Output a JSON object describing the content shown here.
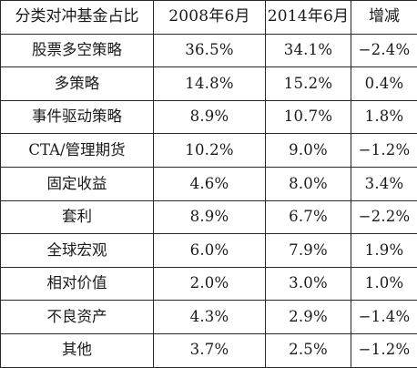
{
  "table": {
    "headers": [
      "分类对冲基金占比",
      "2008年6月",
      "2014年6月",
      "增减"
    ],
    "rows": [
      {
        "category": "股票多空策略",
        "y2008": "36.5%",
        "y2014": "34.1%",
        "change": "−2.4%"
      },
      {
        "category": "多策略",
        "y2008": "14.8%",
        "y2014": "15.2%",
        "change": "0.4%"
      },
      {
        "category": "事件驱动策略",
        "y2008": "8.9%",
        "y2014": "10.7%",
        "change": "1.8%"
      },
      {
        "category": "CTA/管理期货",
        "y2008": "10.2%",
        "y2014": "9.0%",
        "change": "−1.2%"
      },
      {
        "category": "固定收益",
        "y2008": "4.6%",
        "y2014": "8.0%",
        "change": "3.4%"
      },
      {
        "category": "套利",
        "y2008": "8.9%",
        "y2014": "6.7%",
        "change": "−2.2%"
      },
      {
        "category": "全球宏观",
        "y2008": "6.0%",
        "y2014": "7.9%",
        "change": "1.9%"
      },
      {
        "category": "相对价值",
        "y2008": "2.0%",
        "y2014": "3.0%",
        "change": "1.0%"
      },
      {
        "category": "不良资产",
        "y2008": "4.3%",
        "y2014": "2.9%",
        "change": "−1.4%"
      },
      {
        "category": "其他",
        "y2008": "3.7%",
        "y2014": "2.5%",
        "change": "−1.2%"
      }
    ]
  }
}
